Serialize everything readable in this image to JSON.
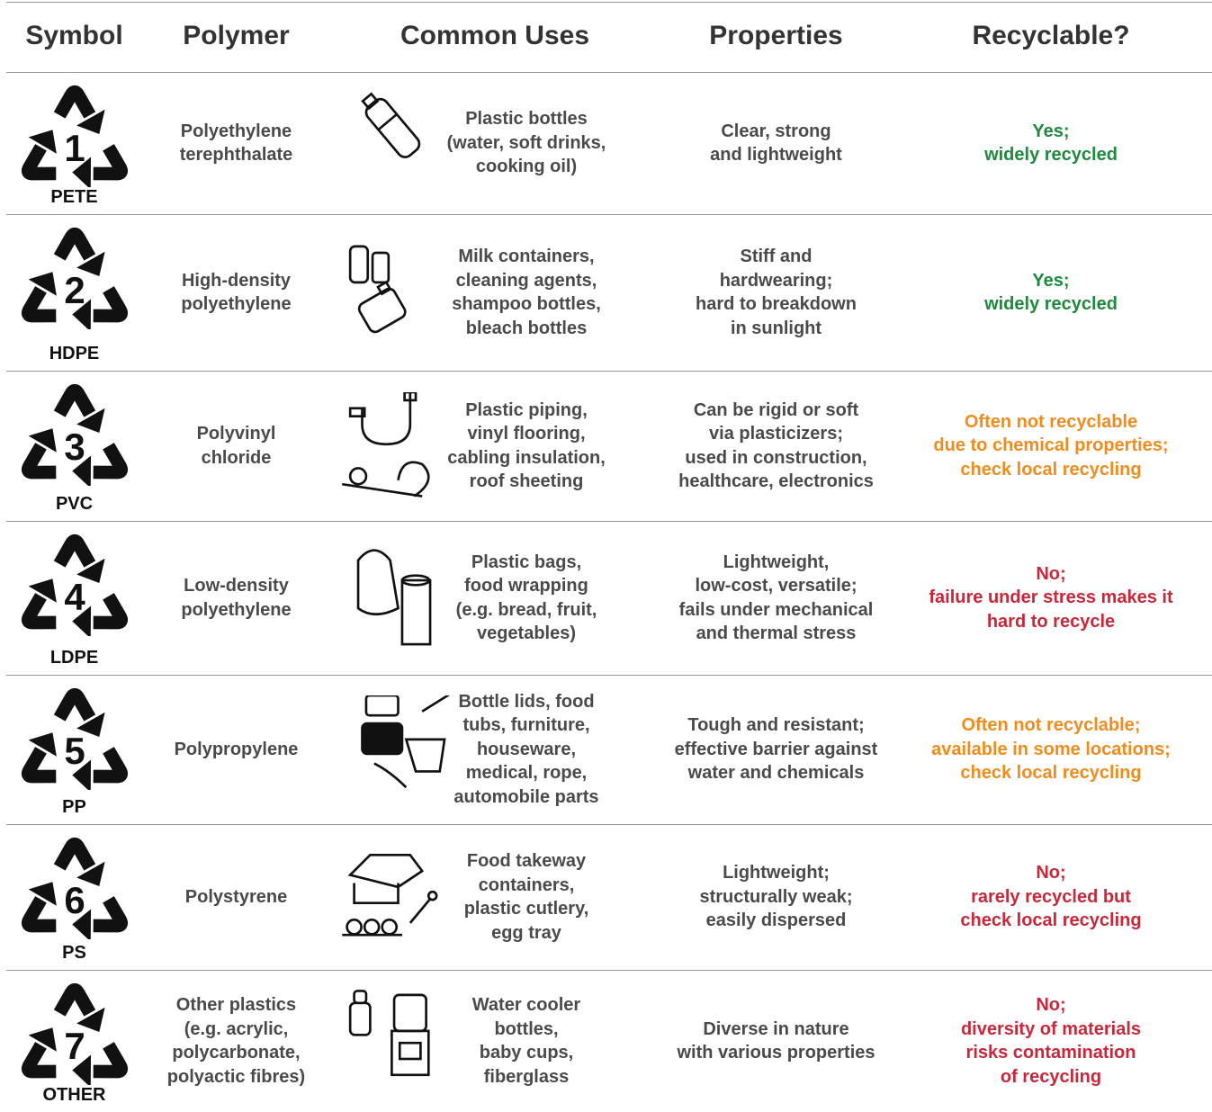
{
  "table": {
    "headers": [
      "Symbol",
      "Polymer",
      "Common Uses",
      "Properties",
      "Recyclable?"
    ],
    "rows": [
      {
        "number": "1",
        "code": "PETE",
        "polymer": [
          "Polyethylene",
          "terephthalate"
        ],
        "uses": [
          "Plastic bottles",
          "(water, soft drinks,",
          "cooking oil)"
        ],
        "properties": [
          "Clear, strong",
          "and lightweight"
        ],
        "recyclable": {
          "lines": [
            "Yes;",
            "widely recycled"
          ],
          "color": "#1e8a3c"
        }
      },
      {
        "number": "2",
        "code": "HDPE",
        "polymer": [
          "High-density",
          "polyethylene"
        ],
        "uses": [
          "Milk containers,",
          "cleaning agents,",
          "shampoo bottles,",
          "bleach bottles"
        ],
        "properties": [
          "Stiff and",
          "hardwearing;",
          "hard to breakdown",
          "in sunlight"
        ],
        "recyclable": {
          "lines": [
            "Yes;",
            "widely recycled"
          ],
          "color": "#1e8a3c"
        }
      },
      {
        "number": "3",
        "code": "PVC",
        "polymer": [
          "Polyvinyl",
          "chloride"
        ],
        "uses": [
          "Plastic piping,",
          "vinyl flooring,",
          "cabling insulation,",
          "roof sheeting"
        ],
        "properties": [
          "Can be rigid or soft",
          "via plasticizers;",
          "used in construction,",
          "healthcare, electronics"
        ],
        "recyclable": {
          "lines": [
            "Often not recyclable",
            "due to chemical properties;",
            "check local recycling"
          ],
          "color": "#f08c1e"
        }
      },
      {
        "number": "4",
        "code": "LDPE",
        "polymer": [
          "Low-density",
          "polyethylene"
        ],
        "uses": [
          "Plastic bags,",
          "food wrapping",
          "(e.g. bread, fruit,",
          "vegetables)"
        ],
        "properties": [
          "Lightweight,",
          "low-cost, versatile;",
          "fails under mechanical",
          "and thermal stress"
        ],
        "recyclable": {
          "lines": [
            "No;",
            "failure under stress makes it",
            "hard to recycle"
          ],
          "color": "#c8283a"
        }
      },
      {
        "number": "5",
        "code": "PP",
        "polymer": [
          "Polypropylene"
        ],
        "uses": [
          "Bottle lids, food",
          "tubs, furniture,",
          "houseware,",
          "medical, rope,",
          "automobile parts"
        ],
        "properties": [
          "Tough and resistant;",
          "effective barrier against",
          "water and chemicals"
        ],
        "recyclable": {
          "lines": [
            "Often not recyclable;",
            "available in some locations;",
            "check local recycling"
          ],
          "color": "#f08c1e"
        }
      },
      {
        "number": "6",
        "code": "PS",
        "polymer": [
          "Polystyrene"
        ],
        "uses": [
          "Food takeway",
          "containers,",
          "plastic cutlery,",
          "egg tray"
        ],
        "properties": [
          "Lightweight;",
          "structurally weak;",
          "easily dispersed"
        ],
        "recyclable": {
          "lines": [
            "No;",
            "rarely recycled but",
            "check local recycling"
          ],
          "color": "#c8283a"
        }
      },
      {
        "number": "7",
        "code": "OTHER",
        "polymer": [
          "Other plastics",
          "(e.g. acrylic,",
          "polycarbonate,",
          "polyactic fibres)"
        ],
        "uses": [
          "Water cooler",
          "bottles,",
          "baby cups,",
          "fiberglass"
        ],
        "properties": [
          "Diverse in nature",
          "with various properties"
        ],
        "recyclable": {
          "lines": [
            "No;",
            "diversity of materials",
            "risks contamination",
            "of recycling"
          ],
          "color": "#c8283a"
        }
      }
    ]
  }
}
